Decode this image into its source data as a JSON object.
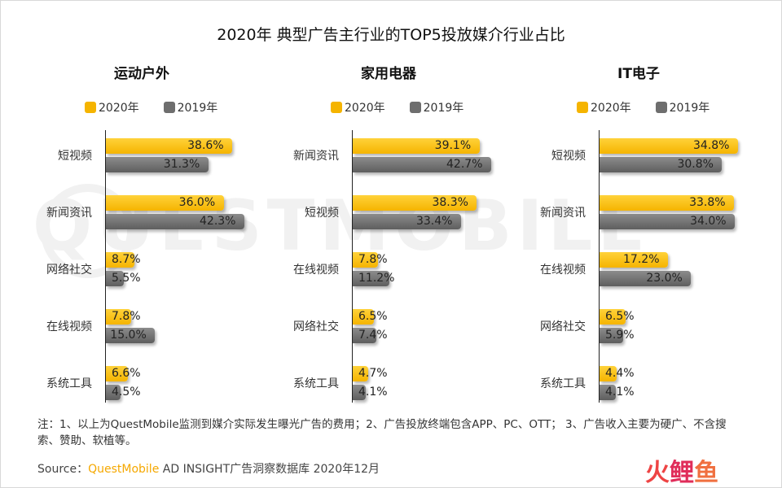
{
  "title": "2020年 典型广告主行业的TOP5投放媒介行业占比",
  "watermark": "QUESTMOBILE",
  "legend": {
    "y2020": "2020年",
    "y2019": "2019年"
  },
  "colors": {
    "y2020": "#f5b400",
    "y2019": "#6e6e6e"
  },
  "chart_data": [
    {
      "type": "bar",
      "title": "运动户外",
      "orientation": "horizontal",
      "categories": [
        "短视频",
        "新闻资讯",
        "网络社交",
        "在线视频",
        "系统工具"
      ],
      "series": [
        {
          "name": "2020年",
          "values": [
            38.6,
            36.0,
            8.7,
            7.8,
            6.6
          ],
          "labels": [
            "38.6%",
            "36.0%",
            "8.7%",
            "7.8%",
            "6.6%"
          ]
        },
        {
          "name": "2019年",
          "values": [
            31.3,
            42.3,
            5.5,
            15.0,
            4.5
          ],
          "labels": [
            "31.3%",
            "42.3%",
            "5.5%",
            "15.0%",
            "4.5%"
          ]
        }
      ],
      "xlim": [
        0,
        42.3
      ]
    },
    {
      "type": "bar",
      "title": "家用电器",
      "orientation": "horizontal",
      "categories": [
        "新闻资讯",
        "短视频",
        "在线视频",
        "网络社交",
        "系统工具"
      ],
      "series": [
        {
          "name": "2020年",
          "values": [
            39.1,
            38.3,
            7.8,
            6.5,
            4.7
          ],
          "labels": [
            "39.1%",
            "38.3%",
            "7.8%",
            "6.5%",
            "4.7%"
          ]
        },
        {
          "name": "2019年",
          "values": [
            42.7,
            33.4,
            11.2,
            7.4,
            4.1
          ],
          "labels": [
            "42.7%",
            "33.4%",
            "11.2%",
            "7.4%",
            "4.1%"
          ]
        }
      ],
      "xlim": [
        0,
        42.7
      ]
    },
    {
      "type": "bar",
      "title": "IT电子",
      "orientation": "horizontal",
      "categories": [
        "短视频",
        "新闻资讯",
        "在线视频",
        "网络社交",
        "系统工具"
      ],
      "series": [
        {
          "name": "2020年",
          "values": [
            34.8,
            33.8,
            17.2,
            6.5,
            4.4
          ],
          "labels": [
            "34.8%",
            "33.8%",
            "17.2%",
            "6.5%",
            "4.4%"
          ]
        },
        {
          "name": "2019年",
          "values": [
            30.8,
            34.0,
            23.0,
            5.9,
            4.1
          ],
          "labels": [
            "30.8%",
            "34.0%",
            "23.0%",
            "5.9%",
            "4.1%"
          ]
        }
      ],
      "xlim": [
        0,
        34.8
      ]
    }
  ],
  "note": "注：1、以上为QuestMobile监测到媒介实际发生曝光广告的费用；2、广告投放终端包含APP、PC、OTT； 3、广告收入主要为硬广、不含搜索、赞助、软植等。",
  "source": {
    "prefix": "Source：",
    "brand": "QuestMobile",
    "rest": " AD INSIGHT广告洞察数据库 2020年12月"
  },
  "logo": {
    "c1": "火",
    "c2": "鲤",
    "c3": "鱼"
  }
}
